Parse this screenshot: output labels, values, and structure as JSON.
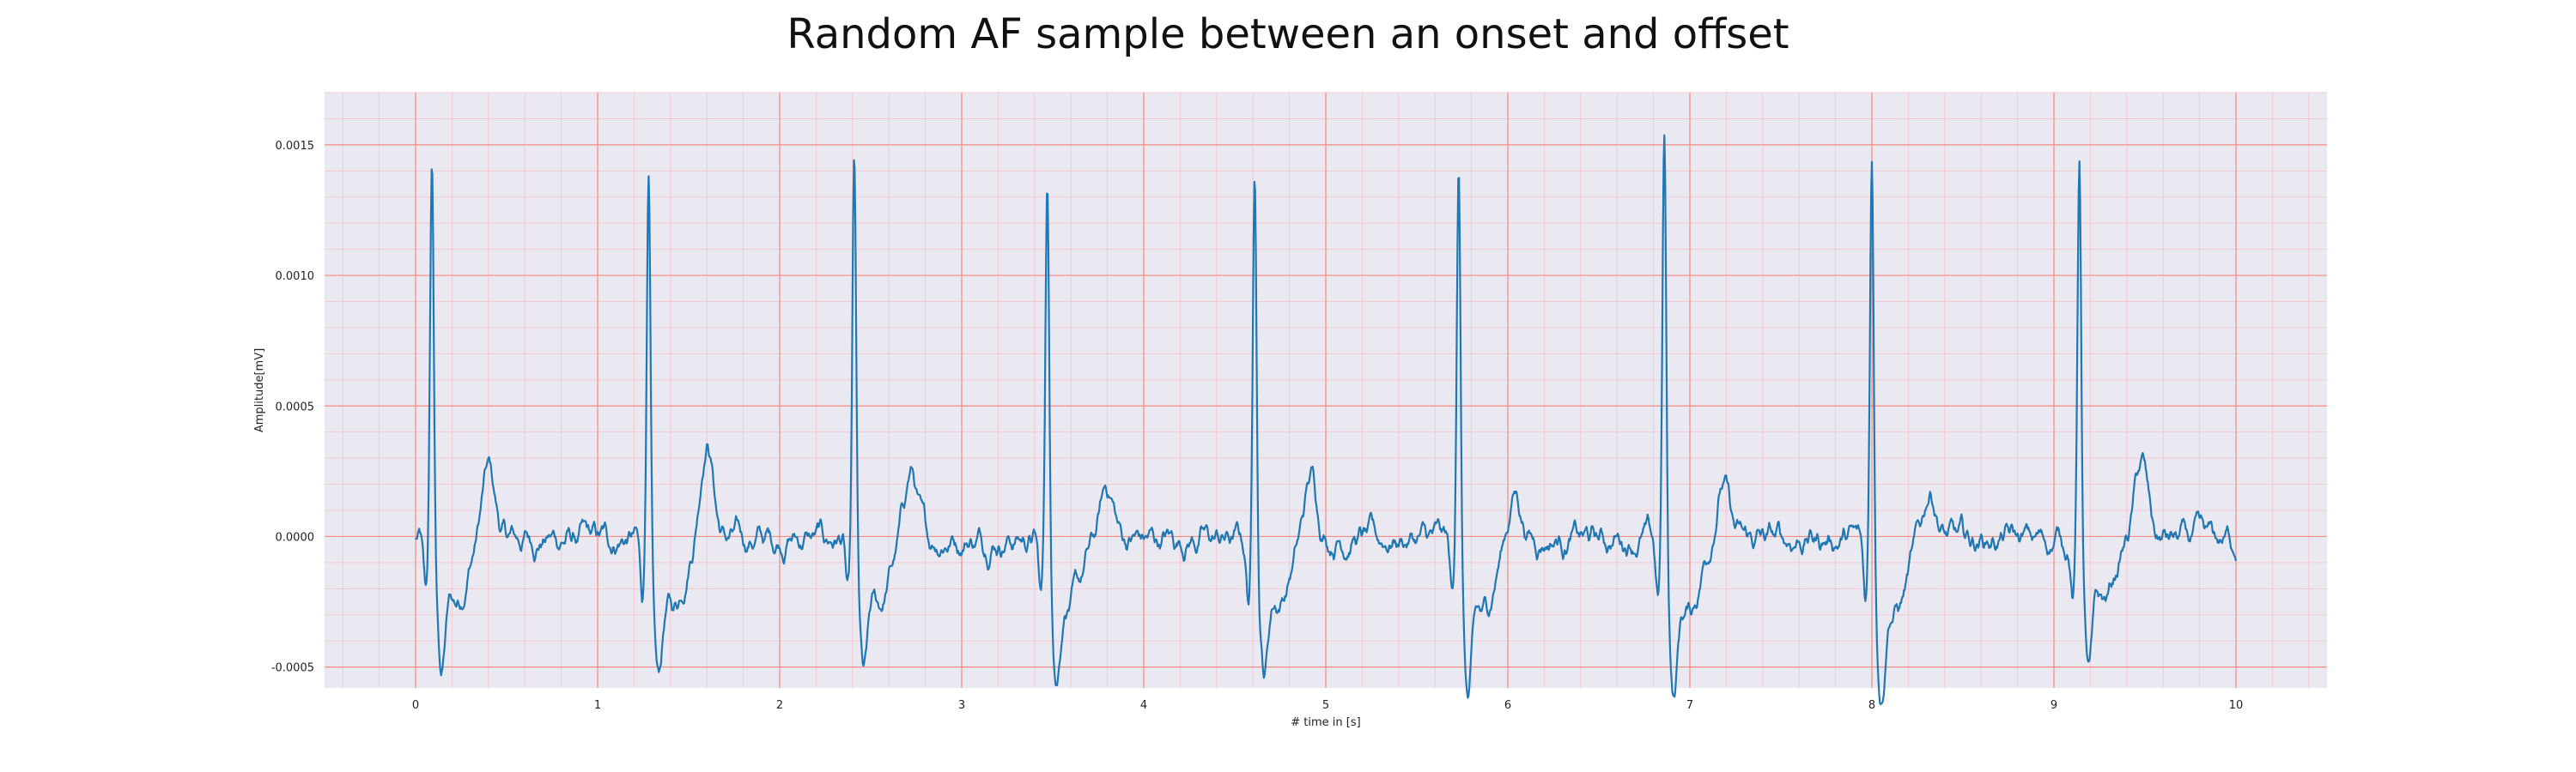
{
  "chart_data": {
    "type": "line",
    "title": "Random AF sample between an onset and offset",
    "xlabel": "# time in [s]",
    "ylabel": "Amplitude[mV]",
    "xlim": [
      -0.5,
      10.5
    ],
    "ylim": [
      -0.00058,
      0.0017
    ],
    "xticks": [
      0,
      1,
      2,
      3,
      4,
      5,
      6,
      7,
      8,
      9,
      10
    ],
    "xtick_labels": [
      "0",
      "1",
      "2",
      "3",
      "4",
      "5",
      "6",
      "7",
      "8",
      "9",
      "10"
    ],
    "yticks": [
      -0.0005,
      0.0,
      0.0005,
      0.001,
      0.0015
    ],
    "ytick_labels": [
      "-0.0005",
      "0.0000",
      "0.0005",
      "0.0010",
      "0.0015"
    ],
    "grid": true,
    "colors": {
      "line": "#1f77b4",
      "plot_background": "#eae9f2",
      "major_grid": "#f28b82",
      "minor_grid": "#f6c9cf"
    },
    "series": [
      {
        "r_peaks": [
          {
            "t": 0.09,
            "amp": 0.00147,
            "s_depth": -0.0004
          },
          {
            "t": 1.28,
            "amp": 0.00144,
            "s_depth": -0.00044
          },
          {
            "t": 2.41,
            "amp": 0.00147,
            "s_depth": -0.00043
          },
          {
            "t": 3.47,
            "amp": 0.00143,
            "s_depth": -0.0004
          },
          {
            "t": 4.61,
            "amp": 0.0015,
            "s_depth": -0.0004
          },
          {
            "t": 5.73,
            "amp": 0.00153,
            "s_depth": -0.00049
          },
          {
            "t": 6.86,
            "amp": 0.0016,
            "s_depth": -0.00047
          },
          {
            "t": 8.0,
            "amp": 0.00155,
            "s_depth": -0.00046
          },
          {
            "t": 9.14,
            "amp": 0.00151,
            "s_depth": -0.0004
          }
        ],
        "t_waves": [
          {
            "t": 0.4,
            "amp": 0.00031
          },
          {
            "t": 1.6,
            "amp": 0.00046
          },
          {
            "t": 2.72,
            "amp": 0.00031
          },
          {
            "t": 3.8,
            "amp": 0.00024
          },
          {
            "t": 4.92,
            "amp": 0.00028
          },
          {
            "t": 6.04,
            "amp": 0.00021
          },
          {
            "t": 7.18,
            "amp": 0.00025
          },
          {
            "t": 8.32,
            "amp": 0.00023
          },
          {
            "t": 9.48,
            "amp": 0.00034
          }
        ],
        "baseline_noise": 9e-05,
        "t_start": 0.0,
        "t_end": 10.0
      }
    ]
  }
}
